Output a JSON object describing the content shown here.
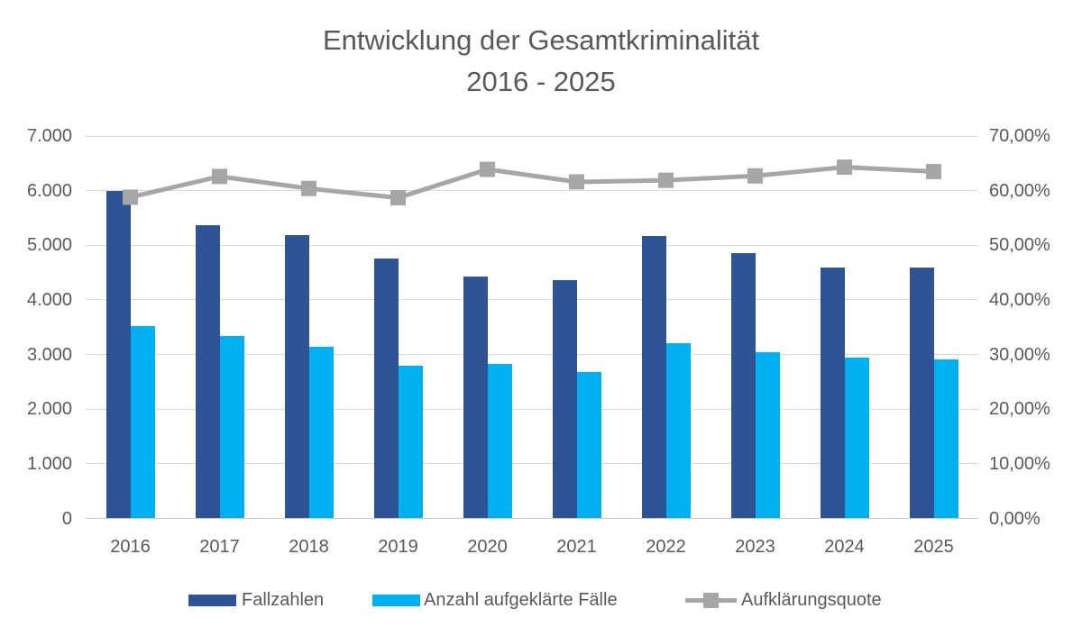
{
  "title": {
    "line1": "Entwicklung der Gesamtkriminalität",
    "line2": "2016 - 2025"
  },
  "chart_data": {
    "type": "bar",
    "subtype": "grouped-bars-with-line-on-secondary-axis",
    "title": "Entwicklung der Gesamtkriminalität 2016 - 2025",
    "categories": [
      "2016",
      "2017",
      "2018",
      "2019",
      "2020",
      "2021",
      "2022",
      "2023",
      "2024",
      "2025"
    ],
    "series": [
      {
        "name": "Fallzahlen",
        "type": "bar",
        "axis": "left",
        "color": "#2F5496",
        "values": [
          6000,
          5370,
          5180,
          4760,
          4430,
          4360,
          5170,
          4860,
          4600,
          4600
        ]
      },
      {
        "name": "Anzahl aufgeklärte Fälle",
        "type": "bar",
        "axis": "left",
        "color": "#00B0F0",
        "values": [
          3520,
          3340,
          3140,
          2800,
          2830,
          2680,
          3200,
          3040,
          2950,
          2910
        ]
      },
      {
        "name": "Aufklärungsquote",
        "type": "line",
        "axis": "right",
        "color": "#A6A6A6",
        "values_percent": [
          58.8,
          62.6,
          60.4,
          58.7,
          63.9,
          61.6,
          61.9,
          62.7,
          64.3,
          63.5
        ]
      }
    ],
    "left_axis": {
      "min": 0,
      "max": 7000,
      "step": 1000,
      "tick_labels": [
        "0",
        "1.000",
        "2.000",
        "3.000",
        "4.000",
        "5.000",
        "6.000",
        "7.000"
      ]
    },
    "right_axis": {
      "min_percent": 0,
      "max_percent": 70,
      "step_percent": 10,
      "tick_labels": [
        "0,00%",
        "10,00%",
        "20,00%",
        "30,00%",
        "40,00%",
        "50,00%",
        "60,00%",
        "70,00%"
      ]
    },
    "grid": true,
    "legend_position": "bottom"
  },
  "colors": {
    "bar_primary": "#2F5496",
    "bar_secondary": "#00B0F0",
    "line": "#A6A6A6",
    "gridline": "#D9D9D9",
    "text": "#595959",
    "background": "#FFFFFF"
  }
}
